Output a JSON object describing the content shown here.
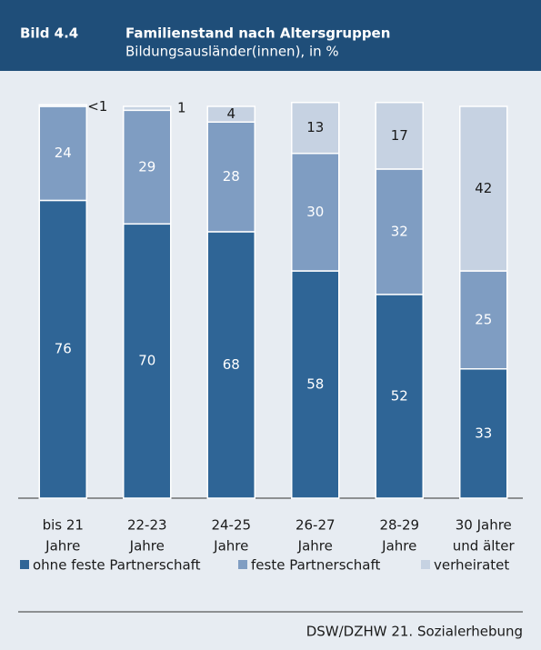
{
  "header": {
    "label": "Bild 4.4",
    "title": "Familienstand nach Altersgruppen",
    "subtitle": "Bildungsausländer(innen), in %"
  },
  "chart_data": {
    "type": "stacked_bar",
    "categories": [
      [
        "bis 21",
        "Jahre"
      ],
      [
        "22-23",
        "Jahre"
      ],
      [
        "24-25",
        "Jahre"
      ],
      [
        "26-27",
        "Jahre"
      ],
      [
        "28-29",
        "Jahre"
      ],
      [
        "30 Jahre",
        "und älter"
      ]
    ],
    "series": [
      {
        "name": "ohne feste Partnerschaft",
        "color": "#2f6596",
        "values": [
          76,
          70,
          68,
          58,
          52,
          33
        ]
      },
      {
        "name": "feste Partnerschaft",
        "color": "#7f9dc2",
        "values": [
          24,
          29,
          28,
          30,
          32,
          25
        ]
      },
      {
        "name": "verheiratet",
        "color": "#c6d2e2",
        "values": [
          0.4,
          1,
          4,
          13,
          17,
          42
        ],
        "value_labels": [
          "<1",
          "1",
          "4",
          "13",
          "17",
          "42"
        ]
      }
    ],
    "ylim": [
      0,
      100
    ],
    "legend": "bottom",
    "source": "DSW/DZHW 21. Sozialerhebung"
  }
}
